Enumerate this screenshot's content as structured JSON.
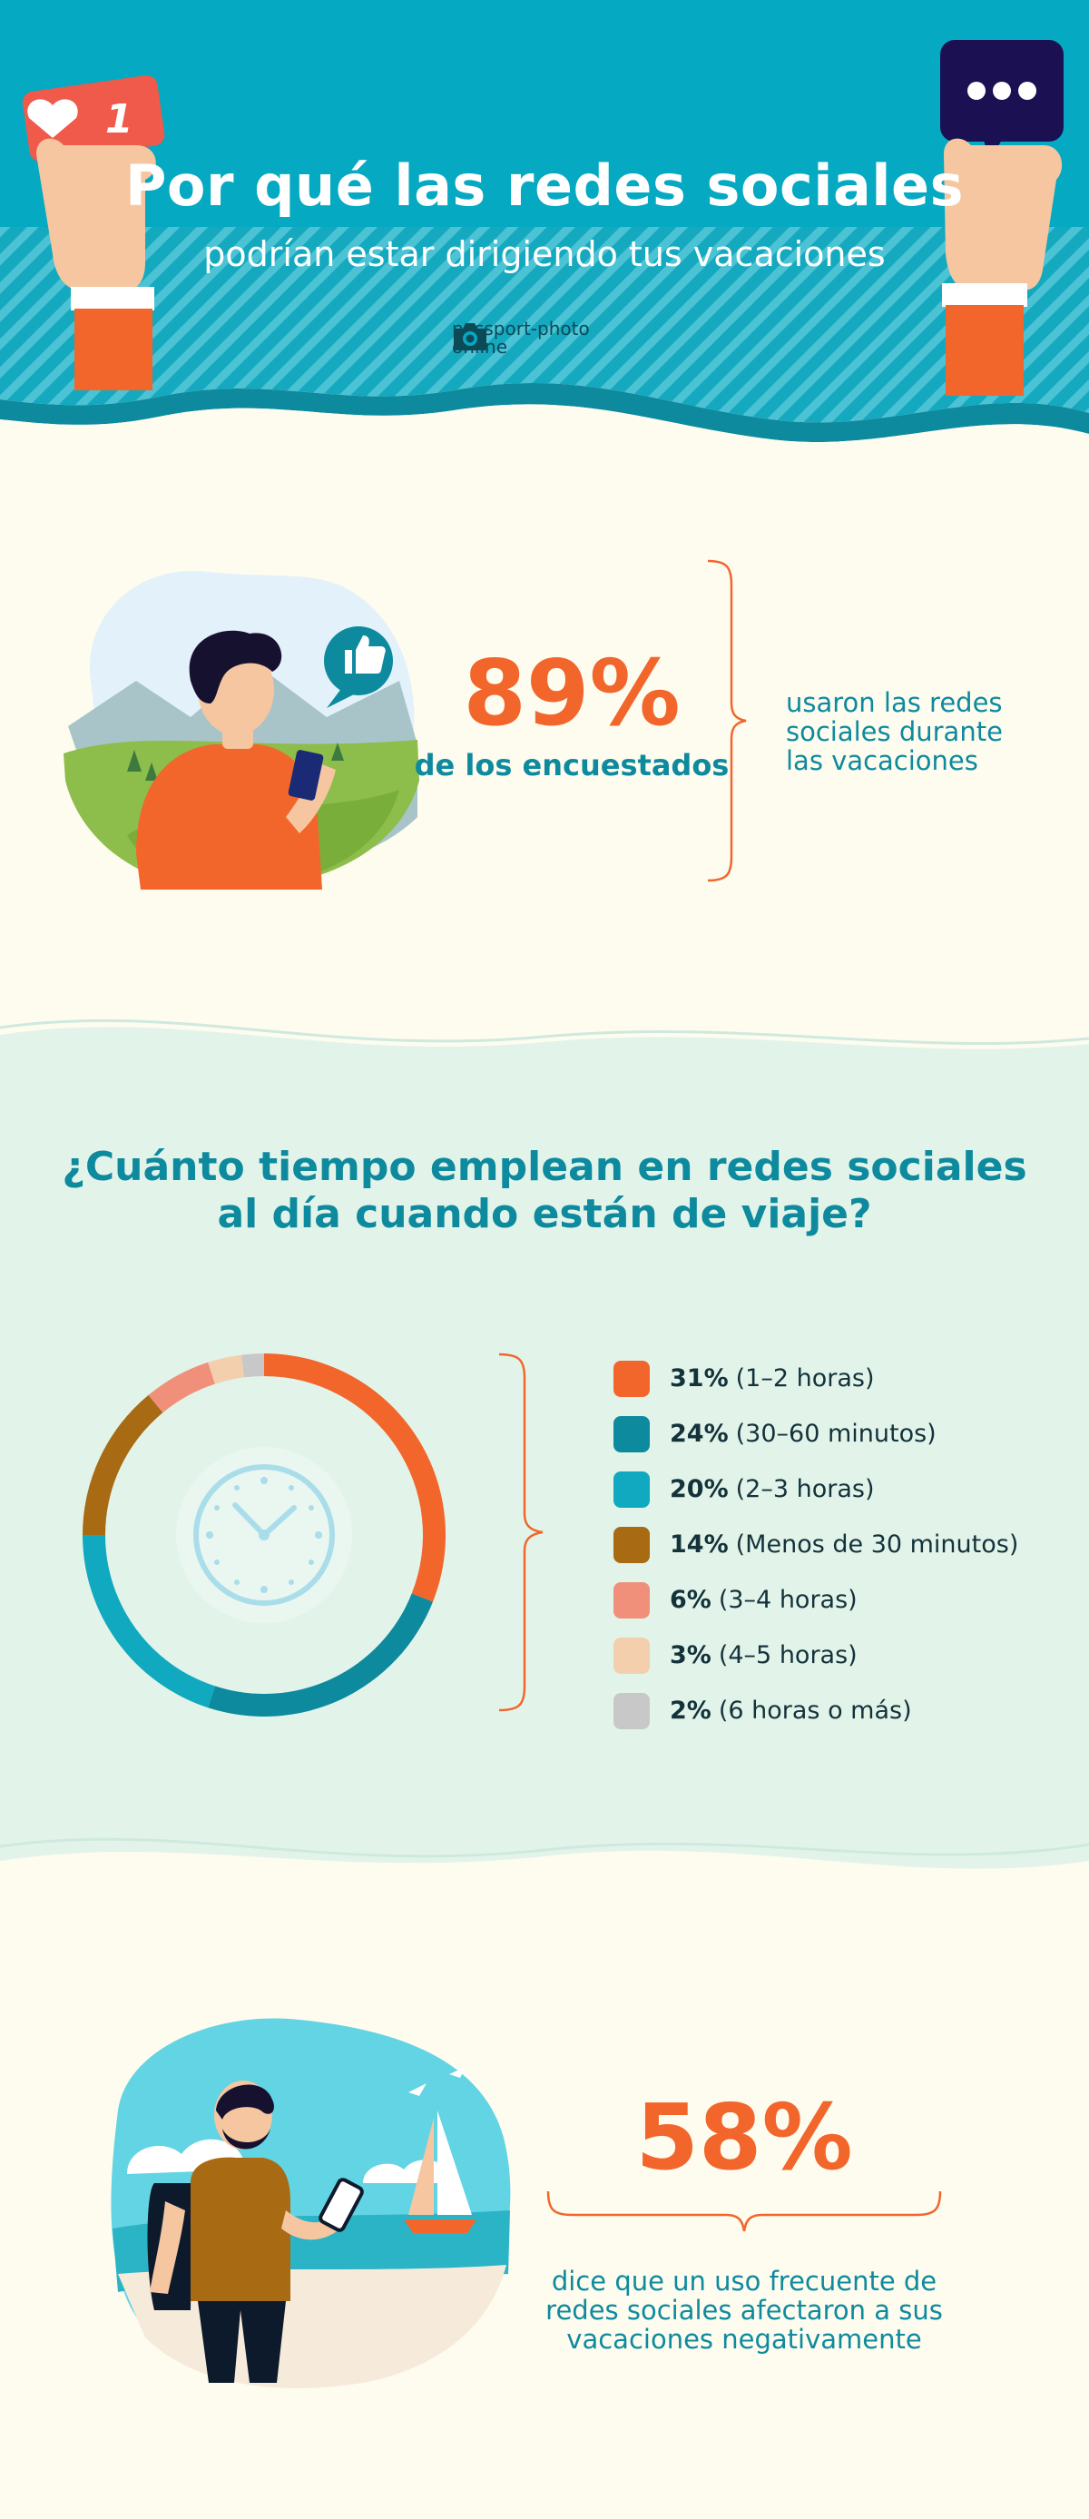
{
  "header": {
    "title": "Por qué las redes sociales",
    "subtitle": "podrían estar dirigiendo tus vacaciones",
    "brand": {
      "line1": "passport-photo",
      "line2": "online",
      "icon": "camera-icon"
    },
    "like_badge": {
      "count": "1",
      "icon": "heart-icon"
    },
    "message_icon": "ellipsis-bubble-icon",
    "colors": {
      "top": "#05a9c2",
      "stripe": "#46bfd2",
      "accent": "#f2662c",
      "dark": "#1b1052"
    }
  },
  "stat1": {
    "value": "89%",
    "label": "de los encuestados",
    "description": [
      "usaron las redes",
      "sociales durante",
      "las vacaciones"
    ],
    "thumb_icon": "thumbs-up-icon"
  },
  "chart": {
    "title_lines": [
      "¿Cuánto tiempo emplean en redes sociales",
      "al día cuando están de viaje?"
    ],
    "center_icon": "clock-icon"
  },
  "chart_data": {
    "type": "pie",
    "title": "¿Cuánto tiempo emplean en redes sociales al día cuando están de viaje?",
    "categories": [
      "1–2 horas",
      "30–60 minutos",
      "2–3 horas",
      "Menos de 30 minutos",
      "3–4 horas",
      "4–5 horas",
      "6 horas o más"
    ],
    "values": [
      31,
      24,
      20,
      14,
      6,
      3,
      2
    ],
    "labels": [
      "31%",
      "24%",
      "20%",
      "14%",
      "6%",
      "3%",
      "2%"
    ],
    "display": [
      "(1–2 horas)",
      "(30–60 minutos)",
      "(2–3 horas)",
      "(Menos de 30 minutos)",
      "(3–4 horas)",
      "(4–5 horas)",
      "(6 horas o más)"
    ],
    "colors": [
      "#f2662c",
      "#0e8a9e",
      "#11a9c0",
      "#a86a12",
      "#f0907a",
      "#f3cfae",
      "#c8c8c8"
    ],
    "legend_position": "right"
  },
  "stat2": {
    "value": "58%",
    "description": [
      "dice que un uso frecuente de",
      "redes sociales afectaron a sus",
      "vacaciones negativamente"
    ]
  }
}
